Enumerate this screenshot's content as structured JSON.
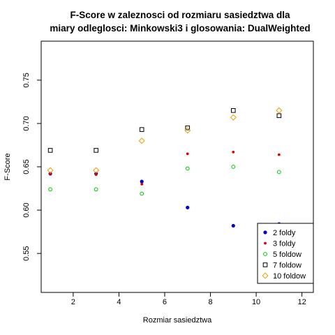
{
  "chart_data": {
    "type": "scatter",
    "title_lines": [
      "F-Score w zaleznosci od rozmiaru sasiedztwa dla",
      "miary odleglosci: Minkowski3  i glosowania:  DualWeighted"
    ],
    "xlabel": "Rozmiar sasiedztwa",
    "ylabel": "F-Score",
    "xlim": [
      0.6,
      12.5
    ],
    "ylim": [
      0.505,
      0.795
    ],
    "xticks": [
      2,
      4,
      6,
      8,
      10,
      12
    ],
    "yticks": [
      0.55,
      0.6,
      0.65,
      0.7,
      0.75
    ],
    "ytick_labels": [
      "0.55",
      "0.60",
      "0.65",
      "0.70",
      "0.75"
    ],
    "grid": false,
    "legend_position": "bottom-right",
    "series": [
      {
        "name": "2 foldy",
        "marker": "filled-circle",
        "color": "#0000cc",
        "x": [
          1,
          3,
          5,
          7,
          9,
          11
        ],
        "y": [
          0.642,
          0.642,
          0.633,
          0.603,
          0.582,
          0.584
        ]
      },
      {
        "name": "3 foldy",
        "marker": "small-dot",
        "color": "#dd0000",
        "x": [
          1,
          3,
          5,
          7,
          9,
          11
        ],
        "y": [
          0.642,
          0.641,
          0.63,
          0.665,
          0.667,
          0.664
        ]
      },
      {
        "name": "5 foldow",
        "marker": "open-circle",
        "color": "#00cc00",
        "x": [
          1,
          3,
          5,
          7,
          9,
          11
        ],
        "y": [
          0.624,
          0.624,
          0.619,
          0.648,
          0.65,
          0.644
        ]
      },
      {
        "name": "7 foldow",
        "marker": "open-square",
        "color": "#000000",
        "x": [
          1,
          3,
          5,
          7,
          9,
          11
        ],
        "y": [
          0.669,
          0.669,
          0.693,
          0.695,
          0.715,
          0.709
        ]
      },
      {
        "name": "10 foldow",
        "marker": "open-diamond",
        "color": "#e69f00",
        "x": [
          1,
          3,
          5,
          7,
          9,
          11
        ],
        "y": [
          0.646,
          0.646,
          0.68,
          0.692,
          0.707,
          0.715
        ]
      }
    ]
  }
}
